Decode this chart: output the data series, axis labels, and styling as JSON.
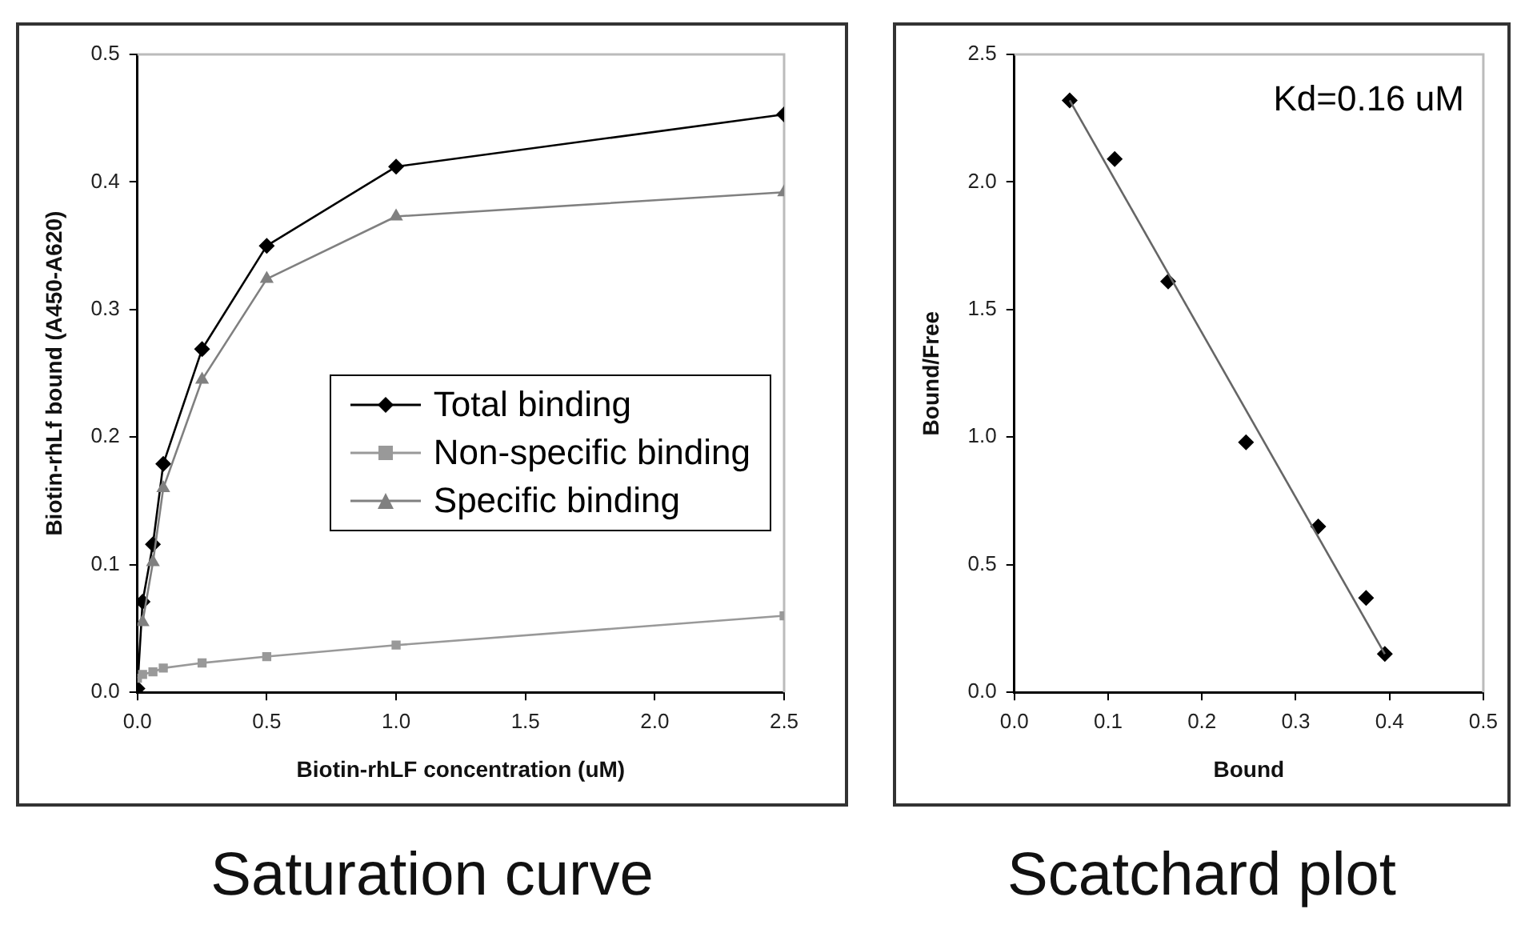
{
  "chart_data": [
    {
      "type": "line",
      "title": "Saturation curve",
      "xlabel": "Biotin-rhLF concentration (uM)",
      "ylabel": "Biotin-rhLf bound (A450-A620)",
      "x": [
        0,
        0.02,
        0.06,
        0.1,
        0.25,
        0.5,
        1,
        2.5
      ],
      "xlim": [
        0,
        2.5
      ],
      "xticks": [
        {
          "value": 0,
          "label": "0.0"
        },
        0.5,
        {
          "value": 1,
          "label": "1.0"
        },
        1.5,
        {
          "value": 2,
          "label": "2.0"
        },
        2.5
      ],
      "ylim": [
        0,
        0.5
      ],
      "yticks": [
        {
          "value": 0,
          "label": "0.0"
        },
        0.1,
        0.2,
        0.3,
        0.4,
        0.5
      ],
      "grid": false,
      "legend": "right",
      "line_style": "solid",
      "series": [
        {
          "name": "Total binding",
          "color": "#000000",
          "marker": "diamond",
          "values": [
            0.003,
            0.071,
            0.116,
            0.179,
            0.269,
            0.35,
            0.412,
            0.453
          ]
        },
        {
          "name": "Non-specific binding",
          "color": "#999999",
          "marker": "square",
          "values": [
            0.011,
            0.014,
            0.016,
            0.019,
            0.023,
            0.028,
            0.037,
            0.06
          ]
        },
        {
          "name": "Specific binding",
          "color": "#808080",
          "marker": "triangle",
          "values": [
            null,
            0.055,
            0.102,
            0.16,
            0.245,
            0.324,
            0.373,
            0.392
          ]
        }
      ]
    },
    {
      "type": "scatter",
      "title": "Scatchard plot",
      "xlabel": "Bound",
      "ylabel": "Bound/Free",
      "annotations": [
        "Kd=0.16 uM"
      ],
      "xlim": [
        0,
        0.5
      ],
      "xticks": [
        {
          "value": 0,
          "label": "0.0"
        },
        0.1,
        0.2,
        0.3,
        0.4,
        0.5
      ],
      "ylim": [
        0,
        2.5
      ],
      "yticks": [
        {
          "value": 0,
          "label": "0.0"
        },
        0.5,
        {
          "value": 1,
          "label": "1.0"
        },
        1.5,
        {
          "value": 2,
          "label": "2.0"
        },
        2.5
      ],
      "grid": false,
      "legend": false,
      "series": [
        {
          "color": "#000000",
          "marker": "diamond",
          "x": [
            0.059,
            0.107,
            0.164,
            0.247,
            0.324,
            0.375,
            0.395
          ],
          "values": [
            2.32,
            2.09,
            1.61,
            0.98,
            0.65,
            0.37,
            0.15
          ]
        },
        {
          "type": "line",
          "color": "#666666",
          "marker": "none",
          "line_style": "solid",
          "x": [
            0.059,
            0.395
          ],
          "values": [
            2.32,
            0.15
          ]
        }
      ]
    }
  ]
}
